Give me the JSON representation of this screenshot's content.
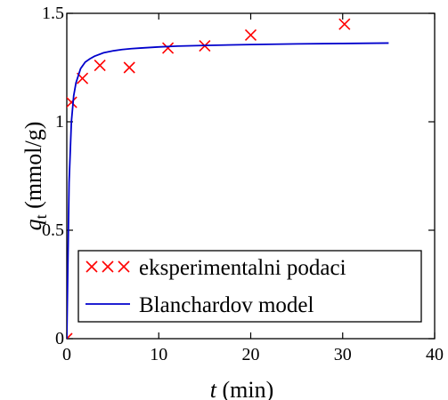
{
  "chart_data": {
    "type": "scatter",
    "xlabel_var": "t",
    "xlabel_unit": " (min)",
    "ylabel_var": "q",
    "ylabel_sub": "t",
    "ylabel_unit": " (mmol/g)",
    "xlim": [
      0,
      40
    ],
    "ylim": [
      0,
      1.5
    ],
    "x_ticks": [
      0,
      10,
      20,
      30,
      40
    ],
    "x_tick_labels": [
      "0",
      "10",
      "20",
      "30",
      "40"
    ],
    "y_ticks": [
      0,
      0.5,
      1,
      1.5
    ],
    "y_tick_labels": [
      "0",
      "0.5",
      "1",
      "1.5"
    ],
    "grid": false,
    "legend_position": "bottom-right",
    "series": [
      {
        "name": "eksperimentalni podaci",
        "kind": "markers",
        "marker": "x",
        "color": "#ff0000",
        "x": [
          0,
          0.5,
          1.7,
          3.6,
          6.8,
          11,
          15,
          20,
          30.2
        ],
        "y": [
          0,
          1.09,
          1.2,
          1.26,
          1.25,
          1.34,
          1.35,
          1.4,
          1.45
        ]
      },
      {
        "name": "Blanchardov model",
        "kind": "line",
        "color": "#0000cc",
        "x": [
          0,
          0.25,
          0.5,
          0.75,
          1,
          1.5,
          2,
          2.5,
          3,
          4,
          5,
          6,
          7,
          8,
          10,
          12,
          15,
          20,
          25,
          30,
          35
        ],
        "y": [
          0,
          0.72,
          1.0,
          1.12,
          1.18,
          1.245,
          1.275,
          1.29,
          1.302,
          1.318,
          1.327,
          1.333,
          1.337,
          1.34,
          1.345,
          1.349,
          1.352,
          1.356,
          1.359,
          1.361,
          1.363
        ]
      }
    ]
  }
}
